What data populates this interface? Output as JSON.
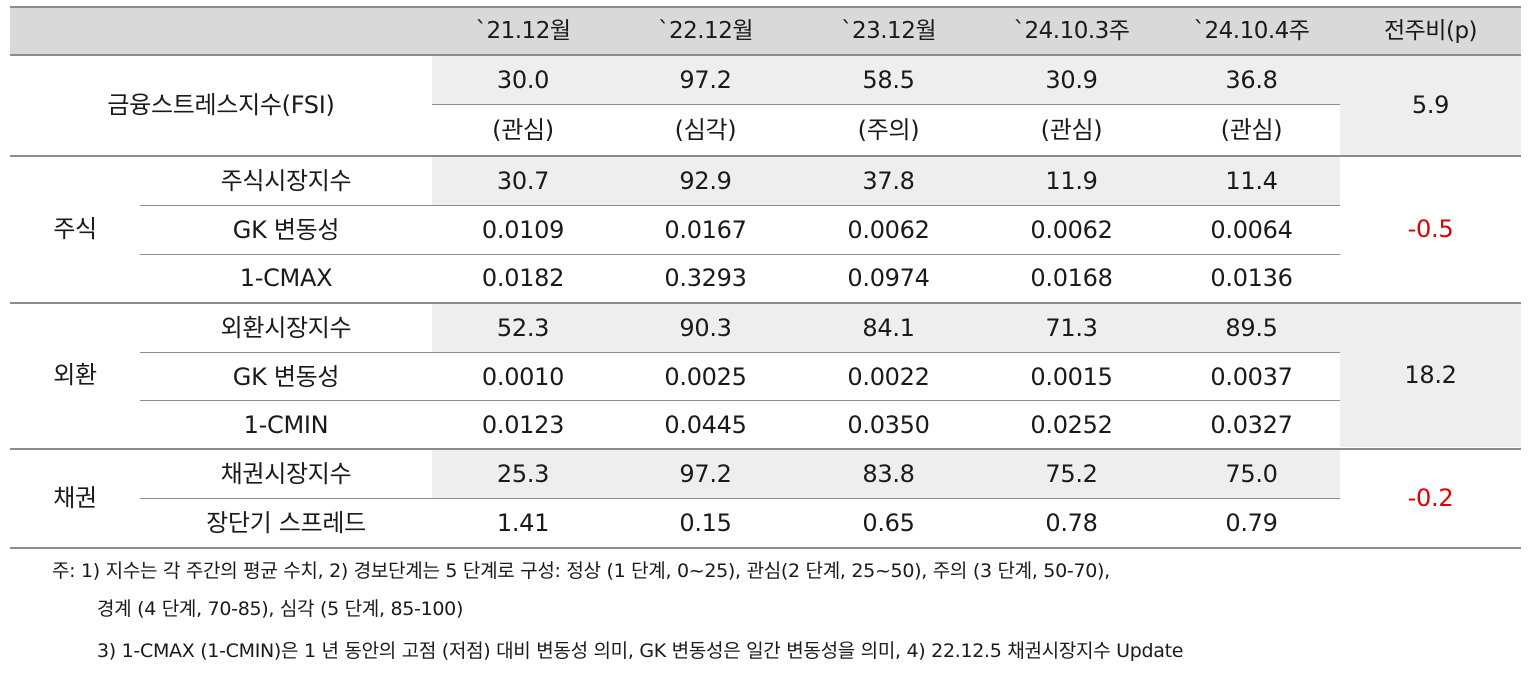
{
  "header": {
    "cols": [
      "`21.12월",
      "`22.12월",
      "`23.12월",
      "`24.10.3주",
      "`24.10.4주",
      "전주비(p)"
    ]
  },
  "fsi": {
    "label": "금융스트레스지수(FSI)",
    "values": [
      "30.0",
      "97.2",
      "58.5",
      "30.9",
      "36.8"
    ],
    "levels": [
      "(관심)",
      "(심각)",
      "(주의)",
      "(관심)",
      "(관심)"
    ],
    "change": "5.9"
  },
  "groups": [
    {
      "name": "주식",
      "change": "-0.5",
      "rows": [
        {
          "label": "주식시장지수",
          "values": [
            "30.7",
            "92.9",
            "37.8",
            "11.9",
            "11.4"
          ]
        },
        {
          "label": "GK 변동성",
          "values": [
            "0.0109",
            "0.0167",
            "0.0062",
            "0.0062",
            "0.0064"
          ]
        },
        {
          "label": "1-CMAX",
          "values": [
            "0.0182",
            "0.3293",
            "0.0974",
            "0.0168",
            "0.0136"
          ]
        }
      ]
    },
    {
      "name": "외환",
      "change": "18.2",
      "rows": [
        {
          "label": "외환시장지수",
          "values": [
            "52.3",
            "90.3",
            "84.1",
            "71.3",
            "89.5"
          ]
        },
        {
          "label": "GK 변동성",
          "values": [
            "0.0010",
            "0.0025",
            "0.0022",
            "0.0015",
            "0.0037"
          ]
        },
        {
          "label": "1-CMIN",
          "values": [
            "0.0123",
            "0.0445",
            "0.0350",
            "0.0252",
            "0.0327"
          ]
        }
      ]
    },
    {
      "name": "채권",
      "change": "-0.2",
      "rows": [
        {
          "label": "채권시장지수",
          "values": [
            "25.3",
            "97.2",
            "83.8",
            "75.2",
            "75.0"
          ]
        },
        {
          "label": "장단기 스프레드",
          "values": [
            "1.41",
            "0.15",
            "0.65",
            "0.78",
            "0.79"
          ]
        }
      ]
    }
  ],
  "notes": [
    "주: 1) 지수는 각 주간의 평균 수치, 2) 경보단계는 5 단계로 구성: 정상 (1 단계, 0~25), 관심(2 단계, 25~50), 주의 (3 단계, 50-70),",
    "경계 (4 단계, 70-85), 심각 (5 단계, 85-100)",
    "3) 1-CMAX (1-CMIN)은 1 년 동안의 고점 (저점) 대비 변동성 의미, GK 변동성은 일간 변동성을 의미, 4) 22.12.5 채권시장지수 Update"
  ],
  "colors": {
    "header_bg": "#d9d9d9",
    "shade": "#eeeeee",
    "rule": "#8c8c8c",
    "negative": "#e00000"
  }
}
